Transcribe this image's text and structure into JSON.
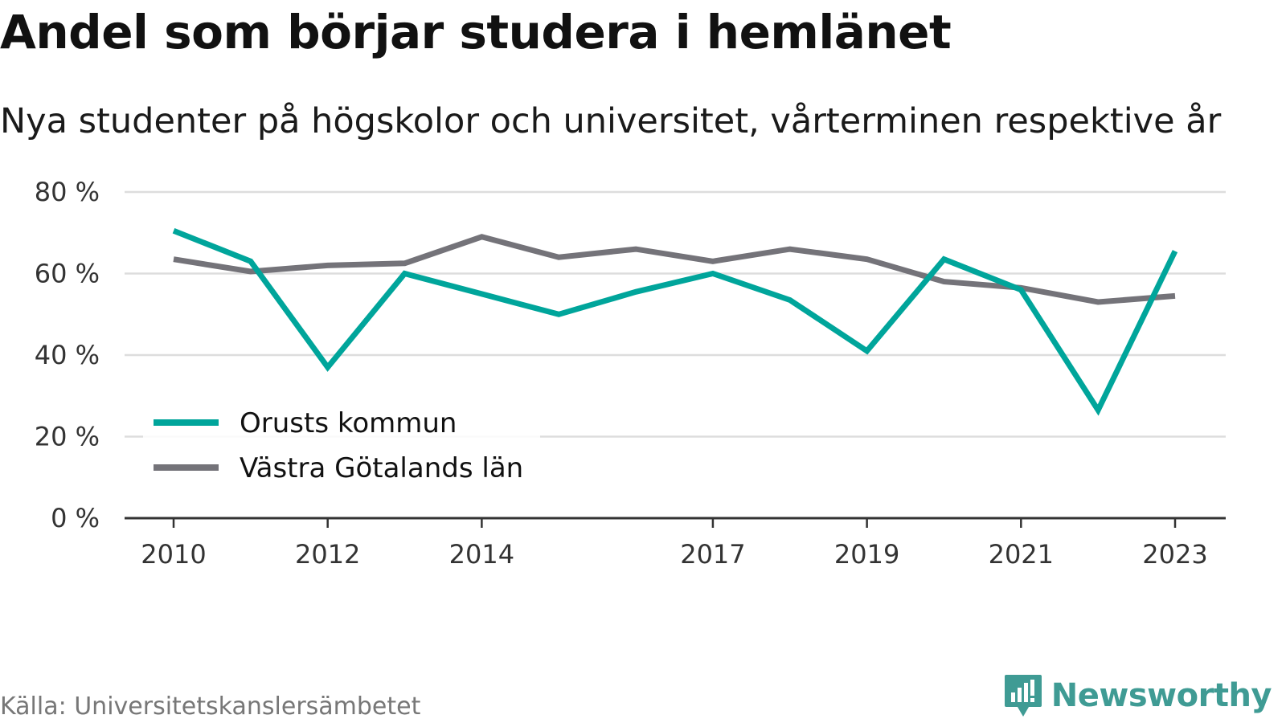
{
  "chart_data": {
    "type": "line",
    "title": "Andel som börjar studera i hemlänet",
    "subtitle": "Nya studenter på högskolor och universitet, vårterminen respektive år",
    "x": [
      2010,
      2011,
      2012,
      2013,
      2014,
      2015,
      2016,
      2017,
      2018,
      2019,
      2020,
      2021,
      2022,
      2023
    ],
    "x_tick_labels": [
      "2010",
      "2012",
      "2014",
      "2017",
      "2019",
      "2021",
      "2023"
    ],
    "x_tick_values": [
      2010,
      2012,
      2014,
      2017,
      2019,
      2021,
      2023
    ],
    "ylim": [
      0,
      80
    ],
    "y_ticks": [
      0,
      20,
      40,
      60,
      80
    ],
    "y_tick_labels": [
      "0 %",
      "20 %",
      "40 %",
      "60 %",
      "80 %"
    ],
    "grid": true,
    "legend_position": "bottom-left",
    "series": [
      {
        "name": "Orusts kommun",
        "color": "#00a59b",
        "values": [
          70.5,
          63.0,
          37.0,
          60.0,
          55.0,
          50.0,
          55.5,
          60.0,
          53.5,
          41.0,
          63.5,
          56.0,
          26.5,
          65.5
        ]
      },
      {
        "name": "Västra Götalands län",
        "color": "#747379",
        "values": [
          63.5,
          60.5,
          62.0,
          62.5,
          69.0,
          64.0,
          66.0,
          63.0,
          66.0,
          63.5,
          58.0,
          56.5,
          53.0,
          54.5
        ]
      }
    ]
  },
  "source": "Källa: Universitetskanslersämbetet",
  "brand": {
    "name": "Newsworthy",
    "color": "#3f9b94",
    "icon": "newsworthy-logo-icon"
  }
}
